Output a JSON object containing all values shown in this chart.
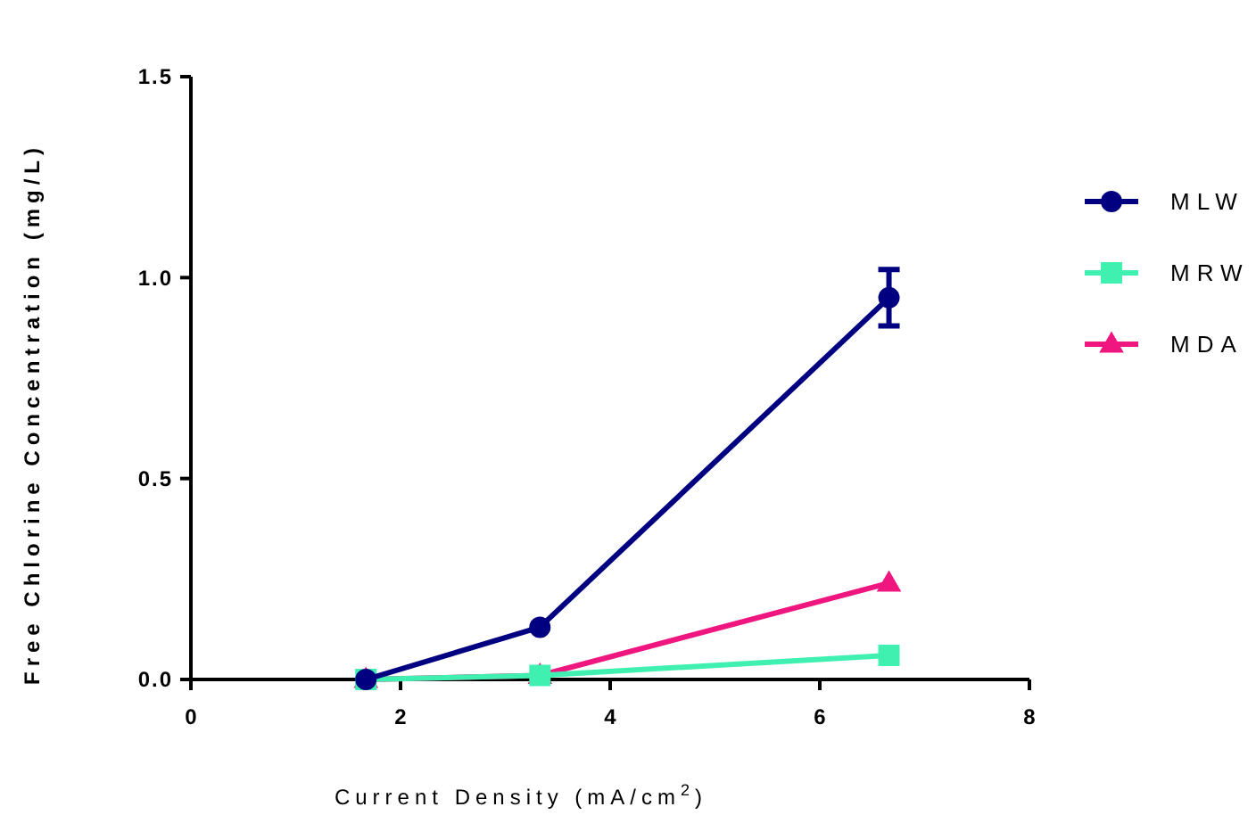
{
  "chart_data": {
    "type": "line",
    "xlabel": "Current Density (mA/cm$^{2}$)",
    "ylabel": "Free Chlorine Concentration (mg/L)",
    "x": [
      1.67,
      3.33,
      6.66
    ],
    "xlim": [
      0,
      8
    ],
    "xticks": [
      0,
      2,
      4,
      6,
      8
    ],
    "ylim": [
      0,
      1.5
    ],
    "yticks": [
      {
        "value": 0,
        "label": "0.0"
      },
      {
        "value": 0.5,
        "label": "0.5"
      },
      {
        "value": 1,
        "label": "1.0"
      },
      {
        "value": 1.5,
        "label": "1.5"
      }
    ],
    "legend": "right",
    "grid": false,
    "series": [
      {
        "name": "MLW",
        "color": "#000080",
        "marker": "circle",
        "values": [
          0,
          0.13,
          0.95
        ],
        "errors": [
          null,
          null,
          0.07
        ]
      },
      {
        "name": "MRW",
        "color": "#40f0b0",
        "marker": "square",
        "values": [
          0,
          0.01,
          0.06
        ]
      },
      {
        "name": "MDA",
        "color": "#f0167f",
        "marker": "triangle",
        "values": [
          0,
          0.01,
          0.24
        ]
      }
    ]
  }
}
